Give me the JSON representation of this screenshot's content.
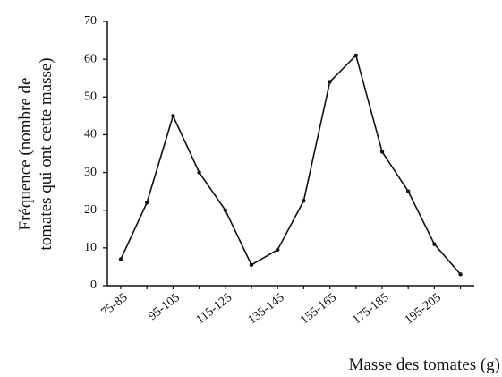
{
  "chart_data": {
    "type": "line",
    "categories": [
      "75-85",
      null,
      "95-105",
      null,
      "115-125",
      null,
      "135-145",
      null,
      "155-165",
      null,
      "175-185",
      null,
      "195-205",
      null
    ],
    "series": [
      {
        "name": null,
        "color": "#111111",
        "values": [
          7,
          22,
          45,
          30,
          20,
          5.5,
          9.5,
          22.5,
          54,
          61,
          35.5,
          25,
          11,
          3
        ]
      }
    ],
    "ylim": [
      0,
      70
    ],
    "yticks": [
      0,
      10,
      20,
      30,
      40,
      50,
      60,
      70
    ],
    "ylabel": [
      "Fréquence (nombre de",
      "tomates qui ont cette masse)"
    ],
    "xlabel": "Masse des tomates (g)",
    "grid": false
  }
}
